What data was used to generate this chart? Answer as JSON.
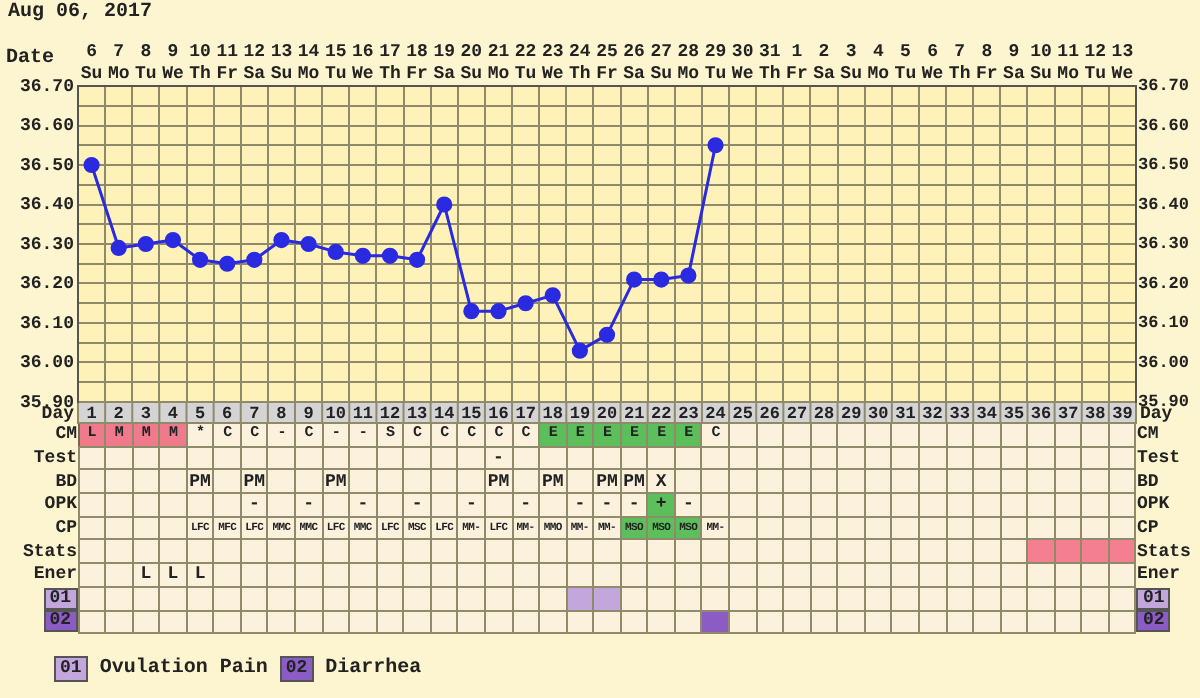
{
  "chart_data": [
    {
      "type": "line",
      "xlabel": "Date",
      "annotations": [
        "Aug 06, 2017"
      ],
      "categories": [
        "6 Su",
        "7 Mo",
        "8 Tu",
        "9 We",
        "10 Th",
        "11 Fr",
        "12 Sa",
        "13 Su",
        "14 Mo",
        "15 Tu",
        "16 We",
        "17 Th",
        "18 Fr",
        "19 Sa",
        "20 Su",
        "21 Mo",
        "22 Tu",
        "23 We",
        "24 Th",
        "25 Fr",
        "26 Sa",
        "27 Su",
        "28 Mo",
        "29 Tu",
        "30 We",
        "31 Th",
        "1 Fr",
        "2 Sa",
        "3 Su",
        "4 Mo",
        "5 Tu",
        "6 We",
        "7 Th",
        "8 Fr",
        "9 Sa",
        "10 Su",
        "11 Mo",
        "12 Tu",
        "13 We"
      ],
      "values": [
        36.5,
        36.29,
        36.3,
        36.31,
        36.26,
        36.25,
        36.26,
        36.31,
        36.3,
        36.28,
        36.27,
        36.27,
        36.26,
        36.4,
        36.13,
        36.13,
        36.15,
        36.17,
        36.03,
        36.07,
        36.21,
        36.21,
        36.22,
        36.55,
        null,
        null,
        null,
        null,
        null,
        null,
        null,
        null,
        null,
        null,
        null,
        null,
        null,
        null,
        null
      ],
      "color": "#2a2ae0",
      "marker": "circle",
      "line_style": "solid",
      "grid": true,
      "legend": false,
      "ylim": [
        35.9,
        36.7
      ],
      "yticks": [
        {
          "value": 35.9,
          "label": "35.90"
        },
        {
          "value": 35.95,
          "label": null
        },
        {
          "value": 36.0,
          "label": "36.00"
        },
        {
          "value": 36.05,
          "label": null
        },
        {
          "value": 36.1,
          "label": "36.10"
        },
        {
          "value": 36.15,
          "label": null
        },
        {
          "value": 36.2,
          "label": "36.20"
        },
        {
          "value": 36.25,
          "label": null
        },
        {
          "value": 36.3,
          "label": "36.30"
        },
        {
          "value": 36.35,
          "label": null
        },
        {
          "value": 36.4,
          "label": "36.40"
        },
        {
          "value": 36.45,
          "label": null
        },
        {
          "value": 36.5,
          "label": "36.50"
        },
        {
          "value": 36.55,
          "label": null
        },
        {
          "value": 36.6,
          "label": "36.60"
        },
        {
          "value": 36.65,
          "label": null
        },
        {
          "value": 36.7,
          "label": "36.70"
        }
      ],
      "x2label": "Day",
      "x2lim": [
        0.5,
        39.5
      ],
      "x2ticks": [
        1,
        2,
        3,
        4,
        5,
        6,
        7,
        8,
        9,
        10,
        11,
        12,
        13,
        14,
        15,
        16,
        17,
        18,
        19,
        20,
        21,
        22,
        23,
        24,
        25,
        26,
        27,
        28,
        29,
        30,
        31,
        32,
        33,
        34,
        35,
        36,
        37,
        38,
        39
      ],
      "y2lim": [
        35.9,
        36.7
      ],
      "y2ticks": [
        {
          "value": 35.9,
          "label": "35.90"
        },
        {
          "value": 36.0,
          "label": "36.00"
        },
        {
          "value": 36.1,
          "label": "36.10"
        },
        {
          "value": 36.2,
          "label": "36.20"
        },
        {
          "value": 36.3,
          "label": "36.30"
        },
        {
          "value": 36.4,
          "label": "36.40"
        },
        {
          "value": 36.5,
          "label": "36.50"
        },
        {
          "value": 36.6,
          "label": "36.60"
        },
        {
          "value": 36.7,
          "label": "36.70"
        }
      ]
    },
    {
      "type": "heatmap",
      "annotations": [
        "Ovulation Pain",
        "Diarrhea"
      ],
      "categories": [
        null,
        null,
        null,
        null,
        null,
        null,
        null,
        null,
        null,
        null,
        null,
        null,
        null,
        null,
        null,
        null,
        null,
        null,
        null,
        null,
        null,
        null,
        null,
        null,
        null,
        null,
        null,
        null,
        null,
        null,
        null,
        null,
        null,
        null,
        null,
        null,
        null,
        null,
        null
      ],
      "y_categories": [
        "CM",
        "Test",
        "BD",
        "OPK",
        "CP",
        "Stats",
        "Ener",
        "01",
        "02"
      ],
      "y2_categories": [
        "CM",
        "Test",
        "BD",
        "OPK",
        "CP",
        "Stats",
        "Ener",
        "01",
        "02"
      ],
      "cells": [
        [
          null,
          null,
          null,
          null,
          null,
          null,
          null,
          null,
          null,
          null,
          null,
          null,
          null,
          null,
          null,
          null,
          null,
          null,
          null,
          null,
          null,
          null,
          null,
          null,
          null,
          null,
          null,
          null,
          null,
          null,
          null,
          null,
          null,
          null,
          null,
          null,
          null,
          null,
          null
        ],
        [
          null,
          null,
          null,
          null,
          null,
          null,
          null,
          null,
          null,
          null,
          null,
          null,
          null,
          null,
          null,
          null,
          null,
          null,
          null,
          null,
          null,
          null,
          null,
          null,
          null,
          null,
          null,
          null,
          null,
          null,
          null,
          null,
          null,
          null,
          null,
          null,
          null,
          null,
          null
        ],
        [
          null,
          null,
          null,
          null,
          null,
          null,
          null,
          null,
          null,
          null,
          null,
          null,
          null,
          null,
          null,
          null,
          null,
          null,
          null,
          null,
          null,
          null,
          null,
          null,
          null,
          null,
          null,
          null,
          null,
          null,
          null,
          null,
          null,
          null,
          null,
          null,
          null,
          null,
          null
        ],
        [
          null,
          null,
          null,
          null,
          null,
          null,
          null,
          null,
          null,
          null,
          null,
          null,
          null,
          null,
          null,
          null,
          null,
          null,
          null,
          null,
          null,
          null,
          null,
          null,
          null,
          null,
          null,
          null,
          null,
          null,
          null,
          null,
          null,
          null,
          null,
          null,
          null,
          null,
          null
        ],
        [
          null,
          null,
          null,
          null,
          null,
          null,
          null,
          null,
          null,
          null,
          null,
          null,
          null,
          null,
          null,
          null,
          null,
          null,
          null,
          null,
          null,
          null,
          null,
          null,
          null,
          null,
          null,
          null,
          null,
          null,
          null,
          null,
          null,
          null,
          null,
          null,
          null,
          null,
          null
        ],
        [
          null,
          null,
          null,
          null,
          null,
          null,
          null,
          null,
          null,
          null,
          null,
          null,
          null,
          null,
          null,
          null,
          null,
          null,
          null,
          null,
          null,
          null,
          null,
          null,
          null,
          null,
          null,
          null,
          null,
          null,
          null,
          null,
          null,
          null,
          null,
          null,
          null,
          null,
          null
        ],
        [
          null,
          null,
          null,
          null,
          null,
          null,
          null,
          null,
          null,
          null,
          null,
          null,
          null,
          null,
          null,
          null,
          null,
          null,
          null,
          null,
          null,
          null,
          null,
          null,
          null,
          null,
          null,
          null,
          null,
          null,
          null,
          null,
          null,
          null,
          null,
          null,
          null,
          null,
          null
        ],
        [
          null,
          null,
          null,
          null,
          null,
          null,
          null,
          null,
          null,
          null,
          null,
          null,
          null,
          null,
          null,
          null,
          null,
          null,
          null,
          null,
          null,
          null,
          null,
          null,
          null,
          null,
          null,
          null,
          null,
          null,
          null,
          null,
          null,
          null,
          null,
          null,
          null,
          null,
          null
        ],
        [
          null,
          null,
          null,
          null,
          null,
          null,
          null,
          null,
          null,
          null,
          null,
          null,
          null,
          null,
          null,
          null,
          null,
          null,
          null,
          null,
          null,
          null,
          null,
          null,
          null,
          null,
          null,
          null,
          null,
          null,
          null,
          null,
          null,
          null,
          null,
          null,
          null,
          null,
          null
        ]
      ],
      "cell_labels": [
        [
          "L",
          "M",
          "M",
          "M",
          "*",
          "C",
          "C",
          "-",
          "C",
          "-",
          "-",
          "S",
          "C",
          "C",
          "C",
          "C",
          "C",
          "E",
          "E",
          "E",
          "E",
          "E",
          "E",
          "C",
          null,
          null,
          null,
          null,
          null,
          null,
          null,
          null,
          null,
          null,
          null,
          null,
          null,
          null,
          null
        ],
        [
          null,
          null,
          null,
          null,
          null,
          null,
          null,
          null,
          null,
          null,
          null,
          null,
          null,
          null,
          null,
          "-",
          null,
          null,
          null,
          null,
          null,
          null,
          null,
          null,
          null,
          null,
          null,
          null,
          null,
          null,
          null,
          null,
          null,
          null,
          null,
          null,
          null,
          null,
          null
        ],
        [
          null,
          null,
          null,
          null,
          "PM",
          null,
          "PM",
          null,
          null,
          "PM",
          null,
          null,
          null,
          null,
          null,
          "PM",
          null,
          "PM",
          null,
          "PM",
          "PM",
          "X",
          null,
          null,
          null,
          null,
          null,
          null,
          null,
          null,
          null,
          null,
          null,
          null,
          null,
          null,
          null,
          null,
          null
        ],
        [
          null,
          null,
          null,
          null,
          null,
          null,
          "-",
          null,
          "-",
          null,
          "-",
          null,
          "-",
          null,
          "-",
          null,
          "-",
          null,
          "-",
          "-",
          "-",
          "+",
          "-",
          null,
          null,
          null,
          null,
          null,
          null,
          null,
          null,
          null,
          null,
          null,
          null,
          null,
          null,
          null,
          null
        ],
        [
          null,
          null,
          null,
          null,
          "LFC",
          "MFC",
          "LFC",
          "MMC",
          "MMC",
          "LFC",
          "MMC",
          "LFC",
          "MSC",
          "LFC",
          "MM-",
          "LFC",
          "MM-",
          "MMO",
          "MM-",
          "MM-",
          "MSO",
          "MSO",
          "MSO",
          "MM-",
          null,
          null,
          null,
          null,
          null,
          null,
          null,
          null,
          null,
          null,
          null,
          null,
          null,
          null,
          null
        ],
        [
          null,
          null,
          null,
          null,
          null,
          null,
          null,
          null,
          null,
          null,
          null,
          null,
          null,
          null,
          null,
          null,
          null,
          null,
          null,
          null,
          null,
          null,
          null,
          null,
          null,
          null,
          null,
          null,
          null,
          null,
          null,
          null,
          null,
          null,
          null,
          null,
          null,
          null,
          null
        ],
        [
          null,
          null,
          "L",
          "L",
          "L",
          null,
          null,
          null,
          null,
          null,
          null,
          null,
          null,
          null,
          null,
          null,
          null,
          null,
          null,
          null,
          null,
          null,
          null,
          null,
          null,
          null,
          null,
          null,
          null,
          null,
          null,
          null,
          null,
          null,
          null,
          null,
          null,
          null,
          null
        ],
        [
          null,
          null,
          null,
          null,
          null,
          null,
          null,
          null,
          null,
          null,
          null,
          null,
          null,
          null,
          null,
          null,
          null,
          null,
          null,
          null,
          null,
          null,
          null,
          null,
          null,
          null,
          null,
          null,
          null,
          null,
          null,
          null,
          null,
          null,
          null,
          null,
          null,
          null,
          null
        ],
        [
          null,
          null,
          null,
          null,
          null,
          null,
          null,
          null,
          null,
          null,
          null,
          null,
          null,
          null,
          null,
          null,
          null,
          null,
          null,
          null,
          null,
          null,
          null,
          null,
          null,
          null,
          null,
          null,
          null,
          null,
          null,
          null,
          null,
          null,
          null,
          null,
          null,
          null,
          null
        ]
      ],
      "colors": [
        [
          "#ee7a8c",
          "#ee7a8c",
          "#ee7a8c",
          "#ee7a8c",
          null,
          null,
          null,
          null,
          null,
          null,
          null,
          null,
          null,
          null,
          null,
          null,
          null,
          "#5cbf5c",
          "#5cbf5c",
          "#5cbf5c",
          "#5cbf5c",
          "#5cbf5c",
          "#5cbf5c",
          null,
          null,
          null,
          null,
          null,
          null,
          null,
          null,
          null,
          null,
          null,
          null,
          null,
          null,
          null,
          null
        ],
        [
          null,
          null,
          null,
          null,
          null,
          null,
          null,
          null,
          null,
          null,
          null,
          null,
          null,
          null,
          null,
          null,
          null,
          null,
          null,
          null,
          null,
          null,
          null,
          null,
          null,
          null,
          null,
          null,
          null,
          null,
          null,
          null,
          null,
          null,
          null,
          null,
          null,
          null,
          null
        ],
        [
          null,
          null,
          null,
          null,
          null,
          null,
          null,
          null,
          null,
          null,
          null,
          null,
          null,
          null,
          null,
          null,
          null,
          null,
          null,
          null,
          null,
          null,
          null,
          null,
          null,
          null,
          null,
          null,
          null,
          null,
          null,
          null,
          null,
          null,
          null,
          null,
          null,
          null,
          null
        ],
        [
          null,
          null,
          null,
          null,
          null,
          null,
          null,
          null,
          null,
          null,
          null,
          null,
          null,
          null,
          null,
          null,
          null,
          null,
          null,
          null,
          null,
          "#5cbf5c",
          null,
          null,
          null,
          null,
          null,
          null,
          null,
          null,
          null,
          null,
          null,
          null,
          null,
          null,
          null,
          null,
          null
        ],
        [
          null,
          null,
          null,
          null,
          null,
          null,
          null,
          null,
          null,
          null,
          null,
          null,
          null,
          null,
          null,
          null,
          null,
          null,
          null,
          null,
          "#5cbf5c",
          "#5cbf5c",
          "#5cbf5c",
          null,
          null,
          null,
          null,
          null,
          null,
          null,
          null,
          null,
          null,
          null,
          null,
          null,
          null,
          null,
          null
        ],
        [
          null,
          null,
          null,
          null,
          null,
          null,
          null,
          null,
          null,
          null,
          null,
          null,
          null,
          null,
          null,
          null,
          null,
          null,
          null,
          null,
          null,
          null,
          null,
          null,
          null,
          null,
          null,
          null,
          null,
          null,
          null,
          null,
          null,
          null,
          null,
          "#f47f90",
          "#f47f90",
          "#f47f90",
          "#f47f90"
        ],
        [
          null,
          null,
          null,
          null,
          null,
          null,
          null,
          null,
          null,
          null,
          null,
          null,
          null,
          null,
          null,
          null,
          null,
          null,
          null,
          null,
          null,
          null,
          null,
          null,
          null,
          null,
          null,
          null,
          null,
          null,
          null,
          null,
          null,
          null,
          null,
          null,
          null,
          null,
          null
        ],
        [
          null,
          null,
          null,
          null,
          null,
          null,
          null,
          null,
          null,
          null,
          null,
          null,
          null,
          null,
          null,
          null,
          null,
          null,
          "#c2a6dc",
          "#c2a6dc",
          null,
          null,
          null,
          null,
          null,
          null,
          null,
          null,
          null,
          null,
          null,
          null,
          null,
          null,
          null,
          null,
          null,
          null,
          null
        ],
        [
          null,
          null,
          null,
          null,
          null,
          null,
          null,
          null,
          null,
          null,
          null,
          null,
          null,
          null,
          null,
          null,
          null,
          null,
          null,
          null,
          null,
          null,
          null,
          "#8b5cc4",
          null,
          null,
          null,
          null,
          null,
          null,
          null,
          null,
          null,
          null,
          null,
          null,
          null,
          null,
          null
        ]
      ]
    }
  ]
}
